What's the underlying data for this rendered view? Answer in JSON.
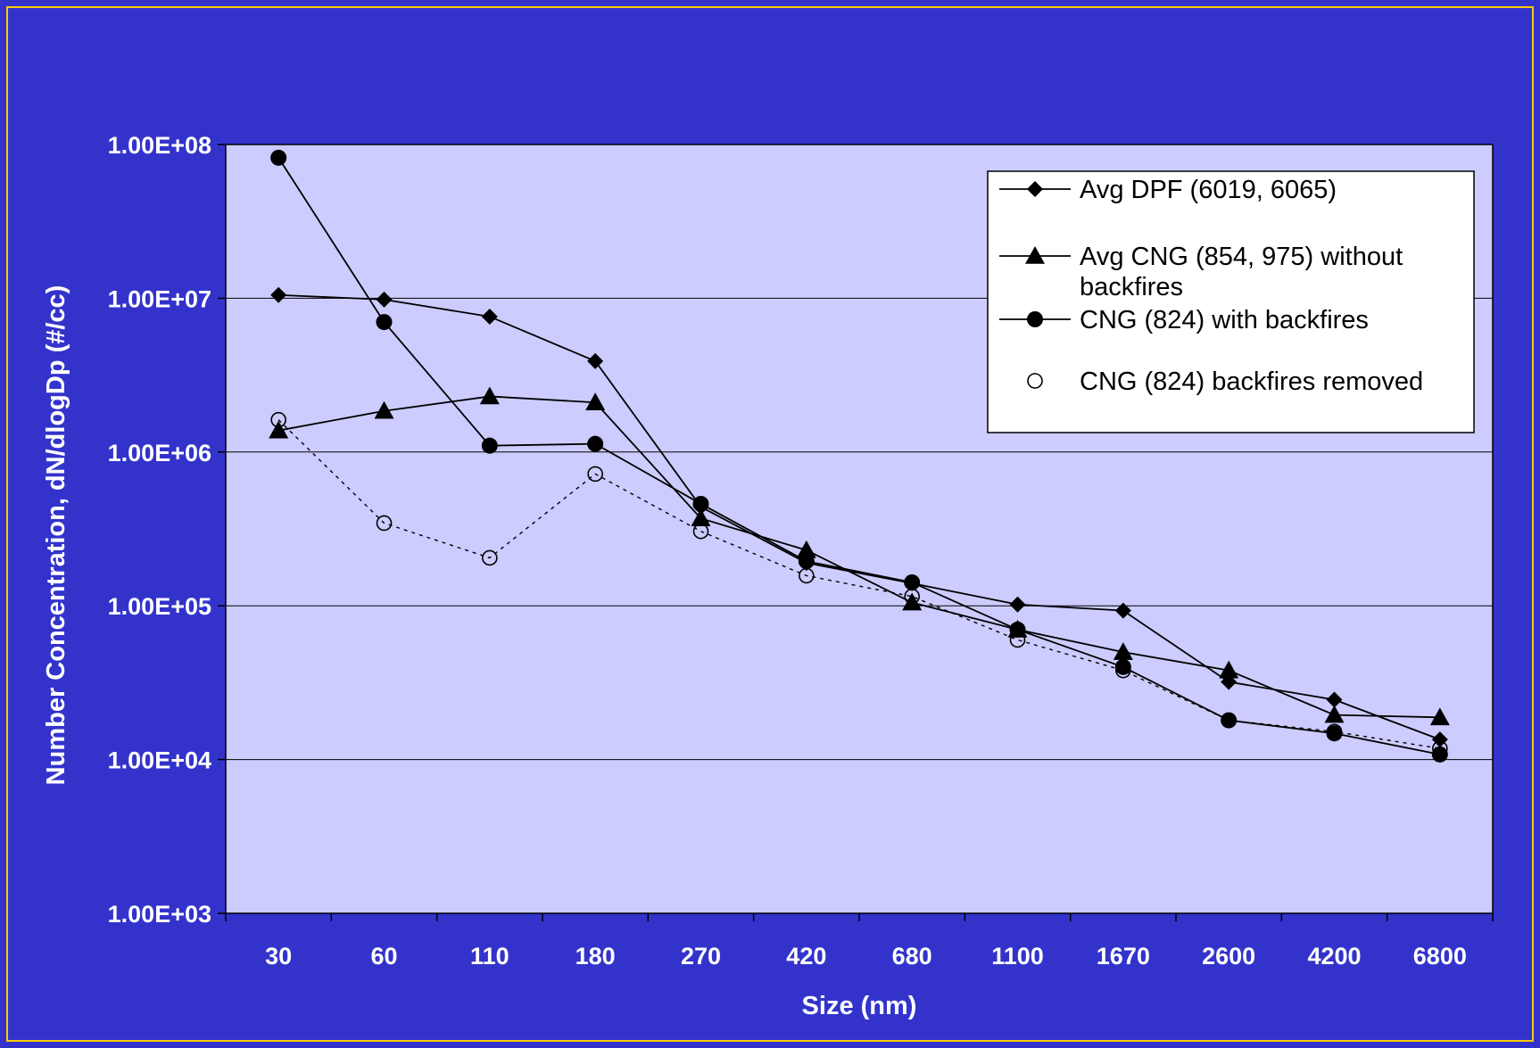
{
  "colors": {
    "background": "#3333cc",
    "border": "#ffcc00",
    "plot_area": "#ccccff",
    "axis_text": "#ffffff",
    "line": "#000000"
  },
  "chart_data": {
    "type": "line",
    "xlabel": "Size (nm)",
    "ylabel": "Number Concentration, dN/dlogDp (#/cc)",
    "y_scale": "log",
    "ylim": [
      1000,
      100000000
    ],
    "y_ticks": [
      "1.00E+03",
      "1.00E+04",
      "1.00E+05",
      "1.00E+06",
      "1.00E+07",
      "1.00E+08"
    ],
    "grid": "horizontal",
    "legend_position": "top-right",
    "categories": [
      "30",
      "60",
      "110",
      "180",
      "270",
      "420",
      "680",
      "1100",
      "1670",
      "2600",
      "4200",
      "6800"
    ],
    "series": [
      {
        "name": "Avg DPF (6019, 6065)",
        "marker": "diamond",
        "line": "solid",
        "values": [
          10500000,
          9800000,
          7600000,
          3900000,
          440000,
          190000,
          140000,
          102000,
          93000,
          32000,
          24500,
          13500
        ]
      },
      {
        "name": "Avg CNG (854, 975) without backfires",
        "marker": "triangle",
        "line": "solid",
        "values": [
          1380000,
          1850000,
          2300000,
          2100000,
          370000,
          230000,
          105000,
          70000,
          50000,
          38000,
          19500,
          18800
        ]
      },
      {
        "name": "CNG (824) with backfires",
        "marker": "circle-filled",
        "line": "solid",
        "values": [
          82000000,
          7000000,
          1100000,
          1130000,
          460000,
          195000,
          142000,
          70000,
          40000,
          18000,
          14800,
          10800
        ]
      },
      {
        "name": "CNG (824) backfires removed",
        "marker": "circle-open",
        "line": "dotted",
        "values": [
          1620000,
          345000,
          205000,
          720000,
          305000,
          157000,
          115000,
          60000,
          38000,
          18000,
          15200,
          11800
        ]
      }
    ]
  }
}
